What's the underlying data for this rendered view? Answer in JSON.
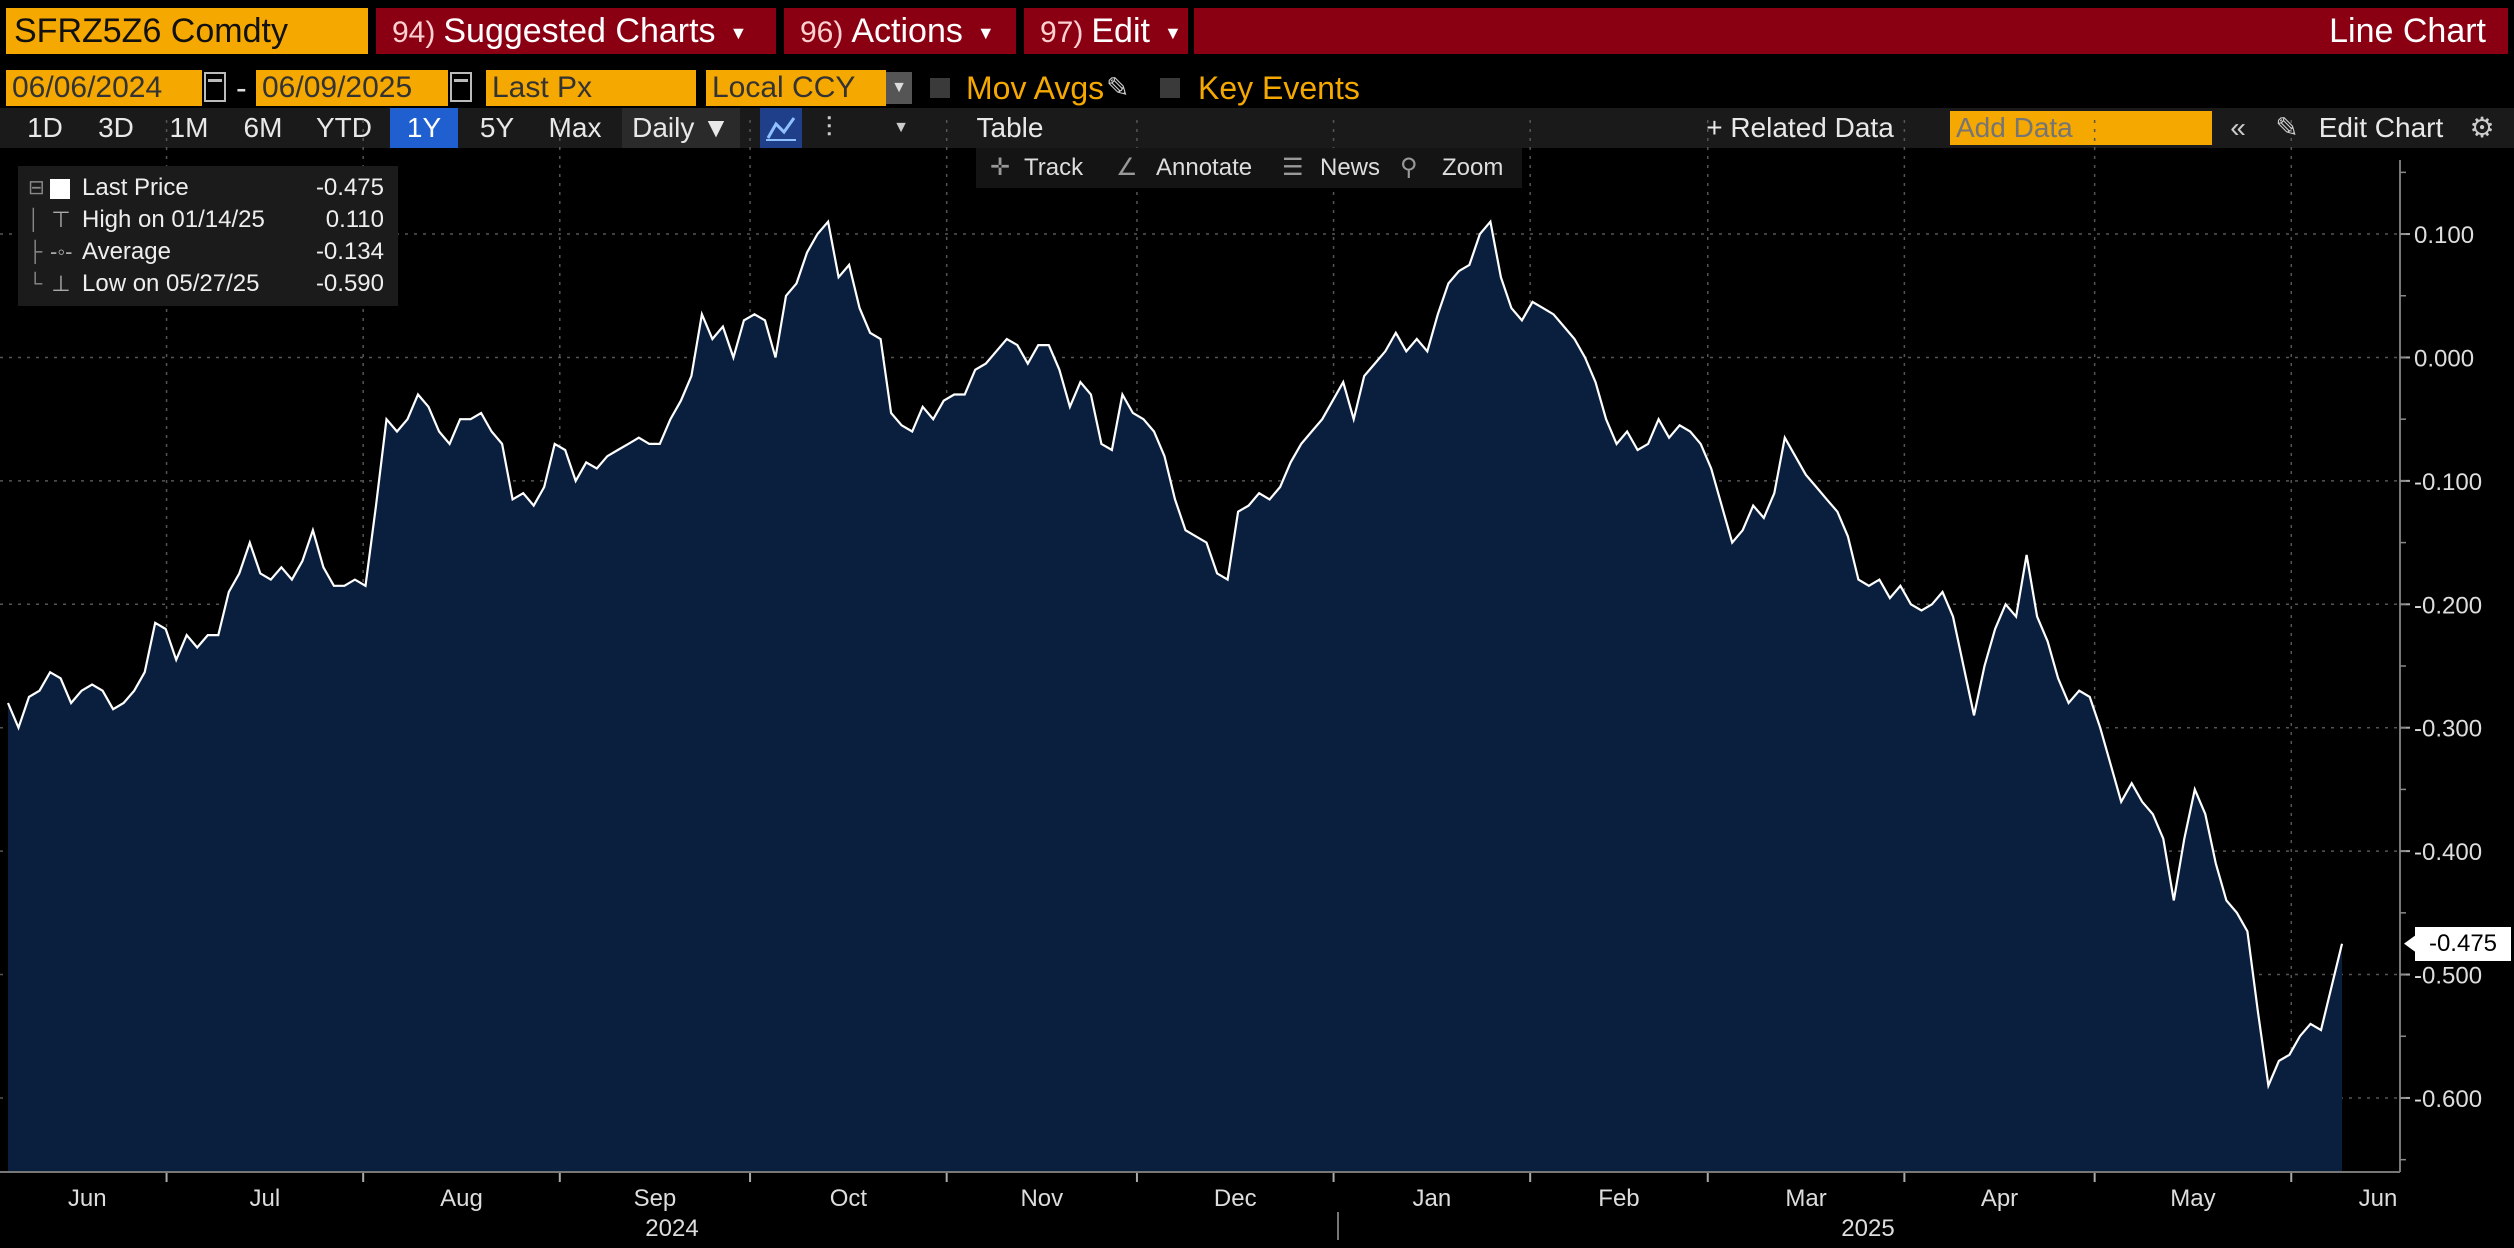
{
  "header": {
    "ticker": "SFRZ5Z6 Comdty",
    "menus": [
      {
        "num": "94)",
        "label": "Suggested Charts"
      },
      {
        "num": "96)",
        "label": "Actions"
      },
      {
        "num": "97)",
        "label": "Edit"
      }
    ],
    "chart_type": "Line Chart"
  },
  "controls": {
    "start_date": "06/06/2024",
    "date_sep": "-",
    "end_date": "06/09/2025",
    "field": "Last Px",
    "currency": "Local CCY",
    "mov_avgs": "Mov Avgs",
    "key_events": "Key Events"
  },
  "periods": [
    "1D",
    "3D",
    "1M",
    "6M",
    "YTD",
    "1Y",
    "5Y",
    "Max"
  ],
  "active_period": "1Y",
  "frequency": "Daily ▼",
  "table_label": "Table",
  "related_data": "+ Related Data",
  "add_data_placeholder": "Add Data",
  "edit_chart": "Edit Chart",
  "tools": [
    "Track",
    "Annotate",
    "News",
    "Zoom"
  ],
  "legend": {
    "last_label": "Last Price",
    "last_value": "-0.475",
    "high_label": "High on 01/14/25",
    "high_value": "0.110",
    "avg_label": "Average",
    "avg_value": "-0.134",
    "low_label": "Low on 05/27/25",
    "low_value": "-0.590"
  },
  "last_value_tag": "-0.475",
  "colors": {
    "accent": "#f5a800",
    "menu_bar": "#8a0012",
    "area_fill": "#0a1f3d",
    "line": "#ffffff",
    "active_tab": "#1f5fd0"
  },
  "chart_data": {
    "type": "area",
    "ylim": [
      -0.66,
      0.16
    ],
    "y_ticks": [
      0.1,
      0.0,
      -0.1,
      -0.2,
      -0.3,
      -0.4,
      -0.5,
      -0.6
    ],
    "y_tick_labels": [
      "0.100",
      "0.000",
      "-0.100",
      "-0.200",
      "-0.300",
      "-0.400",
      "-0.500",
      "-0.600"
    ],
    "x_month_labels": [
      "Jun",
      "Jul",
      "Aug",
      "Sep",
      "Oct",
      "Nov",
      "Dec",
      "Jan",
      "Feb",
      "Mar",
      "Apr",
      "May",
      "Jun"
    ],
    "x_year_labels": [
      "2024",
      "2025"
    ],
    "start_date": "2024-06-06",
    "end_date": "2025-06-09",
    "series": [
      {
        "values": [
          -0.28,
          -0.3,
          -0.275,
          -0.27,
          -0.255,
          -0.26,
          -0.28,
          -0.27,
          -0.265,
          -0.27,
          -0.285,
          -0.28,
          -0.27,
          -0.255,
          -0.215,
          -0.22,
          -0.245,
          -0.225,
          -0.235,
          -0.225,
          -0.225,
          -0.19,
          -0.175,
          -0.15,
          -0.175,
          -0.18,
          -0.17,
          -0.18,
          -0.165,
          -0.14,
          -0.17,
          -0.185,
          -0.185,
          -0.18,
          -0.185,
          -0.12,
          -0.05,
          -0.06,
          -0.05,
          -0.03,
          -0.04,
          -0.06,
          -0.07,
          -0.05,
          -0.05,
          -0.045,
          -0.06,
          -0.07,
          -0.115,
          -0.11,
          -0.12,
          -0.105,
          -0.07,
          -0.075,
          -0.1,
          -0.085,
          -0.09,
          -0.08,
          -0.075,
          -0.07,
          -0.065,
          -0.07,
          -0.07,
          -0.05,
          -0.035,
          -0.015,
          0.035,
          0.015,
          0.025,
          0.0,
          0.03,
          0.035,
          0.03,
          0.0,
          0.05,
          0.06,
          0.085,
          0.1,
          0.11,
          0.065,
          0.075,
          0.04,
          0.02,
          0.015,
          -0.045,
          -0.055,
          -0.06,
          -0.04,
          -0.05,
          -0.035,
          -0.03,
          -0.03,
          -0.01,
          -0.005,
          0.005,
          0.015,
          0.01,
          -0.005,
          0.01,
          0.01,
          -0.01,
          -0.04,
          -0.02,
          -0.03,
          -0.07,
          -0.075,
          -0.03,
          -0.045,
          -0.05,
          -0.06,
          -0.08,
          -0.115,
          -0.14,
          -0.145,
          -0.15,
          -0.175,
          -0.18,
          -0.125,
          -0.12,
          -0.11,
          -0.115,
          -0.105,
          -0.085,
          -0.07,
          -0.06,
          -0.05,
          -0.035,
          -0.02,
          -0.05,
          -0.015,
          -0.005,
          0.005,
          0.02,
          0.005,
          0.015,
          0.005,
          0.035,
          0.06,
          0.07,
          0.075,
          0.1,
          0.11,
          0.065,
          0.04,
          0.03,
          0.045,
          0.04,
          0.035,
          0.025,
          0.015,
          0.0,
          -0.02,
          -0.05,
          -0.07,
          -0.06,
          -0.075,
          -0.07,
          -0.05,
          -0.065,
          -0.055,
          -0.06,
          -0.07,
          -0.09,
          -0.12,
          -0.15,
          -0.14,
          -0.12,
          -0.13,
          -0.11,
          -0.065,
          -0.08,
          -0.095,
          -0.105,
          -0.115,
          -0.125,
          -0.145,
          -0.18,
          -0.185,
          -0.18,
          -0.195,
          -0.185,
          -0.2,
          -0.205,
          -0.2,
          -0.19,
          -0.21,
          -0.25,
          -0.29,
          -0.25,
          -0.22,
          -0.2,
          -0.21,
          -0.16,
          -0.21,
          -0.23,
          -0.26,
          -0.28,
          -0.27,
          -0.275,
          -0.3,
          -0.33,
          -0.36,
          -0.345,
          -0.36,
          -0.37,
          -0.39,
          -0.44,
          -0.39,
          -0.35,
          -0.37,
          -0.41,
          -0.44,
          -0.45,
          -0.465,
          -0.53,
          -0.59,
          -0.57,
          -0.565,
          -0.55,
          -0.54,
          -0.545,
          -0.51,
          -0.475
        ]
      }
    ]
  }
}
